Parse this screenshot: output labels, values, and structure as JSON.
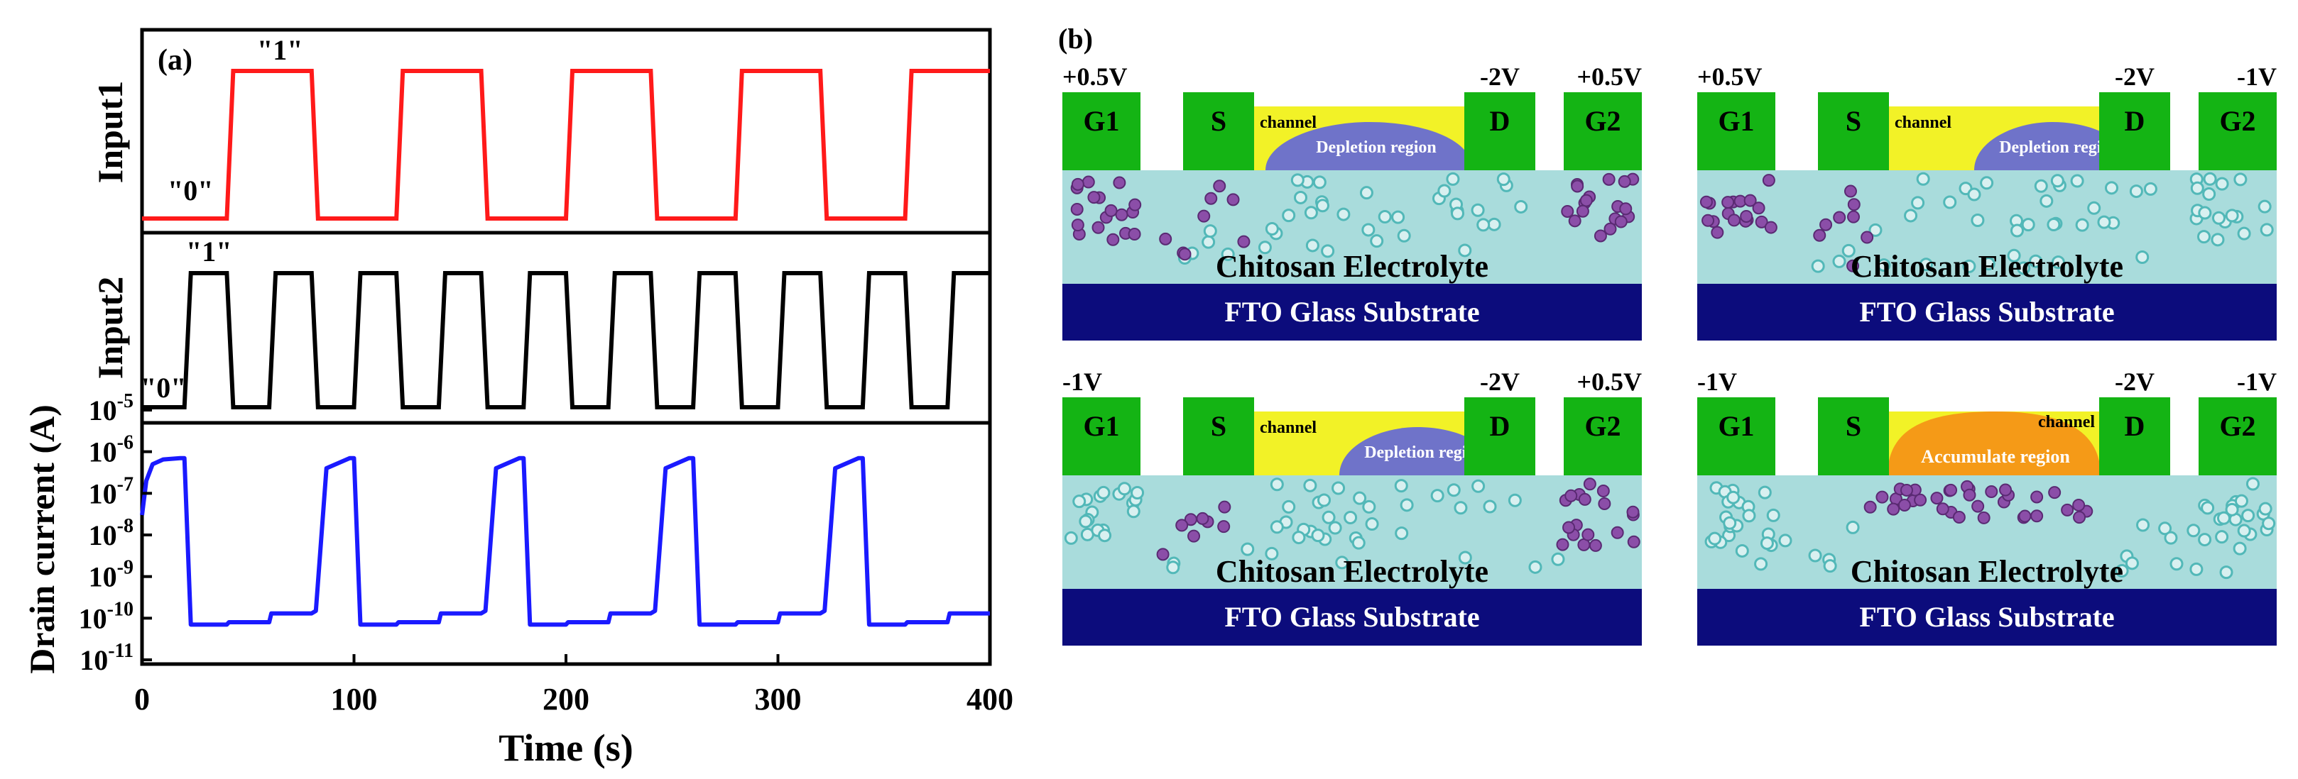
{
  "panel_a": {
    "label": "(a)",
    "xlabel": "Time (s)",
    "xticks": [
      "0",
      "100",
      "200",
      "300",
      "400"
    ],
    "input1": {
      "ylabel": "Input1",
      "high_label": "\"1\"",
      "low_label": "\"0\"",
      "color": "#ff1a1a"
    },
    "input2": {
      "ylabel": "Input2",
      "high_label": "\"1\"",
      "low_label": "\"0\"",
      "color": "#000000"
    },
    "drain": {
      "ylabel": "Drain current (A)",
      "color": "#1a1aff",
      "ytick_exponents": [
        "-5",
        "-6",
        "-7",
        "-8",
        "-9",
        "-10",
        "-11"
      ]
    }
  },
  "panel_b": {
    "label": "(b)",
    "channel_label": "channel",
    "electrolyte_label": "Chitosan Electrolyte",
    "substrate_label": "FTO Glass Substrate",
    "terminals": {
      "g1": "G1",
      "s": "S",
      "d": "D",
      "g2": "G2"
    },
    "devices": [
      {
        "g1_voltage": "+0.5V",
        "d_voltage": "-2V",
        "g2_voltage": "+0.5V",
        "region_label": "Depletion region",
        "region_type": "depletion"
      },
      {
        "g1_voltage": "+0.5V",
        "d_voltage": "-2V",
        "g2_voltage": "-1V",
        "region_label": "Depletion region",
        "region_type": "depletion"
      },
      {
        "g1_voltage": "-1V",
        "d_voltage": "-2V",
        "g2_voltage": "+0.5V",
        "region_label": "Depletion region",
        "region_type": "depletion"
      },
      {
        "g1_voltage": "-1V",
        "d_voltage": "-2V",
        "g2_voltage": "-1V",
        "region_label": "Accumulate region",
        "region_type": "accumulate"
      }
    ],
    "colors": {
      "electrode": "#14b414",
      "channel": "#f2f227",
      "depletion": "#6f73c9",
      "accumulate": "#f59a17",
      "electrolyte": "#a9dcdc",
      "substrate": "#0c0c7c",
      "purple_ion": "#8b4ea8",
      "teal_ion": "#52b8b8"
    }
  },
  "chart_data": [
    {
      "type": "line",
      "title": "Input1",
      "xlabel": "Time (s)",
      "ylabel": "Input1",
      "xlim": [
        0,
        400
      ],
      "series": [
        {
          "name": "Input1",
          "x": [
            0,
            40,
            43,
            80,
            83,
            120,
            123,
            160,
            163,
            200,
            203,
            240,
            243,
            280,
            283,
            320,
            323,
            360,
            363,
            400
          ],
          "values": [
            0,
            0,
            1,
            1,
            0,
            0,
            1,
            1,
            0,
            0,
            1,
            1,
            0,
            0,
            1,
            1,
            0,
            0,
            1,
            1
          ]
        }
      ]
    },
    {
      "type": "line",
      "title": "Input2",
      "xlabel": "Time (s)",
      "ylabel": "Input2",
      "xlim": [
        0,
        400
      ],
      "series": [
        {
          "name": "Input2",
          "x": [
            0,
            20,
            23,
            40,
            43,
            60,
            63,
            80,
            83,
            100,
            103,
            120,
            123,
            140,
            143,
            160,
            163,
            180,
            183,
            200,
            203,
            220,
            223,
            240,
            243,
            260,
            263,
            280,
            283,
            300,
            303,
            320,
            323,
            340,
            343,
            360,
            363,
            380,
            383,
            400
          ],
          "values": [
            0,
            0,
            1,
            1,
            0,
            0,
            1,
            1,
            0,
            0,
            1,
            1,
            0,
            0,
            1,
            1,
            0,
            0,
            1,
            1,
            0,
            0,
            1,
            1,
            0,
            0,
            1,
            1,
            0,
            0,
            1,
            1,
            0,
            0,
            1,
            1,
            0,
            0,
            1,
            1
          ]
        }
      ]
    },
    {
      "type": "line",
      "title": "Drain current",
      "xlabel": "Time (s)",
      "ylabel": "Drain current (A)",
      "xlim": [
        0,
        400
      ],
      "ylim": [
        1e-11,
        1e-05
      ],
      "yscale": "log",
      "series": [
        {
          "name": "Drain current",
          "x": [
            0,
            2,
            5,
            10,
            18,
            20,
            23,
            40,
            41,
            60,
            61,
            80,
            82,
            87,
            98,
            100,
            103,
            120,
            121,
            140,
            141,
            160,
            162,
            167,
            178,
            180,
            183,
            200,
            201,
            220,
            221,
            240,
            242,
            247,
            258,
            260,
            263,
            280,
            281,
            300,
            301,
            320,
            322,
            327,
            338,
            340,
            343,
            360,
            361,
            380,
            381,
            400
          ],
          "values": [
            3e-08,
            2e-07,
            5e-07,
            6.5e-07,
            7e-07,
            7e-07,
            7e-11,
            7e-11,
            8e-11,
            8e-11,
            1.3e-10,
            1.3e-10,
            1.5e-10,
            4e-07,
            7e-07,
            7e-07,
            7e-11,
            7e-11,
            8e-11,
            8e-11,
            1.3e-10,
            1.3e-10,
            1.5e-10,
            4e-07,
            7e-07,
            7e-07,
            7e-11,
            7e-11,
            8e-11,
            8e-11,
            1.3e-10,
            1.3e-10,
            1.5e-10,
            4e-07,
            7e-07,
            7e-07,
            7e-11,
            7e-11,
            8e-11,
            8e-11,
            1.3e-10,
            1.3e-10,
            1.5e-10,
            4e-07,
            7e-07,
            7e-07,
            7e-11,
            7e-11,
            8e-11,
            8e-11,
            1.3e-10,
            1.3e-10
          ]
        }
      ]
    }
  ]
}
